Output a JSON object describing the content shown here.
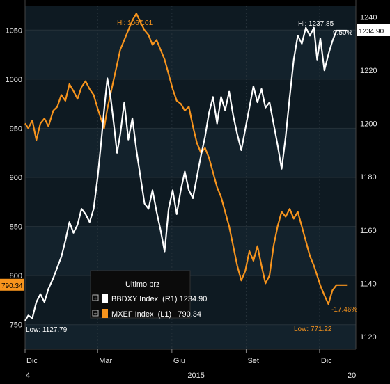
{
  "chart_data": {
    "type": "line",
    "title": "",
    "xlabel": "",
    "ylabel": "",
    "x_ticks": [
      {
        "label": "Dic",
        "date": "2014-12-01"
      },
      {
        "label": "Mar",
        "date": "2015-03-01"
      },
      {
        "label": "Giu",
        "date": "2015-06-01"
      },
      {
        "label": "Set",
        "date": "2015-09-01"
      },
      {
        "label": "Dic",
        "date": "2015-12-01"
      }
    ],
    "x_range": [
      "2014-12-01",
      "2016-01-15"
    ],
    "year_labels": [
      {
        "label": "4",
        "date": "2014-12-01"
      },
      {
        "label": "2015",
        "date": "2015-07-01"
      },
      {
        "label": "20",
        "date": "2016-01-10"
      }
    ],
    "left_axis": {
      "ticks": [
        750,
        800,
        850,
        900,
        950,
        1000,
        1050
      ],
      "range": [
        725,
        1075
      ]
    },
    "right_axis": {
      "ticks": [
        1120,
        1140,
        1160,
        1180,
        1200,
        1220,
        1240
      ],
      "range": [
        1115.3,
        1244.3
      ]
    },
    "legend": {
      "title": "Ultimo prz",
      "entries": [
        {
          "label": "BBDXY Index  (R1) 1234.90",
          "color": "#ffffff"
        },
        {
          "label": "MXEF Index  (L1)   790.34",
          "color": "#f7941d"
        }
      ]
    },
    "series": [
      {
        "name": "BBDXY Index",
        "axis": "right",
        "color": "#ffffff",
        "last_value": "1234.90",
        "high_label": "Hi: 1237.85",
        "low_label": "Low: 1127.79",
        "change_label": "9.50%",
        "points": [
          [
            "2014-12-01",
            1126
          ],
          [
            "2014-12-05",
            1128
          ],
          [
            "2014-12-10",
            1127
          ],
          [
            "2014-12-15",
            1133
          ],
          [
            "2014-12-20",
            1136
          ],
          [
            "2014-12-25",
            1133
          ],
          [
            "2014-12-30",
            1138
          ],
          [
            "2015-01-05",
            1142
          ],
          [
            "2015-01-10",
            1146
          ],
          [
            "2015-01-15",
            1150
          ],
          [
            "2015-01-20",
            1156
          ],
          [
            "2015-01-25",
            1163
          ],
          [
            "2015-01-30",
            1159
          ],
          [
            "2015-02-04",
            1162
          ],
          [
            "2015-02-09",
            1168
          ],
          [
            "2015-02-14",
            1166
          ],
          [
            "2015-02-19",
            1163
          ],
          [
            "2015-02-24",
            1168
          ],
          [
            "2015-03-01",
            1180
          ],
          [
            "2015-03-05",
            1192
          ],
          [
            "2015-03-09",
            1205
          ],
          [
            "2015-03-13",
            1217
          ],
          [
            "2015-03-17",
            1210
          ],
          [
            "2015-03-21",
            1200
          ],
          [
            "2015-03-25",
            1189
          ],
          [
            "2015-03-29",
            1196
          ],
          [
            "2015-04-03",
            1208
          ],
          [
            "2015-04-08",
            1194
          ],
          [
            "2015-04-13",
            1202
          ],
          [
            "2015-04-18",
            1190
          ],
          [
            "2015-04-23",
            1180
          ],
          [
            "2015-04-28",
            1170
          ],
          [
            "2015-05-03",
            1168
          ],
          [
            "2015-05-08",
            1175
          ],
          [
            "2015-05-13",
            1167
          ],
          [
            "2015-05-18",
            1160
          ],
          [
            "2015-05-23",
            1152
          ],
          [
            "2015-05-28",
            1168
          ],
          [
            "2015-06-02",
            1175
          ],
          [
            "2015-06-07",
            1166
          ],
          [
            "2015-06-12",
            1175
          ],
          [
            "2015-06-17",
            1182
          ],
          [
            "2015-06-22",
            1175
          ],
          [
            "2015-06-27",
            1172
          ],
          [
            "2015-07-02",
            1180
          ],
          [
            "2015-07-07",
            1188
          ],
          [
            "2015-07-12",
            1195
          ],
          [
            "2015-07-17",
            1204
          ],
          [
            "2015-07-22",
            1210
          ],
          [
            "2015-07-27",
            1200
          ],
          [
            "2015-08-01",
            1210
          ],
          [
            "2015-08-06",
            1205
          ],
          [
            "2015-08-11",
            1212
          ],
          [
            "2015-08-16",
            1203
          ],
          [
            "2015-08-21",
            1196
          ],
          [
            "2015-08-26",
            1190
          ],
          [
            "2015-08-31",
            1198
          ],
          [
            "2015-09-05",
            1206
          ],
          [
            "2015-09-10",
            1214
          ],
          [
            "2015-09-15",
            1208
          ],
          [
            "2015-09-20",
            1213
          ],
          [
            "2015-09-25",
            1206
          ],
          [
            "2015-09-30",
            1208
          ],
          [
            "2015-10-05",
            1200
          ],
          [
            "2015-10-10",
            1192
          ],
          [
            "2015-10-15",
            1183
          ],
          [
            "2015-10-20",
            1195
          ],
          [
            "2015-10-25",
            1210
          ],
          [
            "2015-10-30",
            1224
          ],
          [
            "2015-11-04",
            1233
          ],
          [
            "2015-11-09",
            1230
          ],
          [
            "2015-11-14",
            1236
          ],
          [
            "2015-11-19",
            1233
          ],
          [
            "2015-11-24",
            1236
          ],
          [
            "2015-11-28",
            1224
          ],
          [
            "2015-12-02",
            1232
          ],
          [
            "2015-12-07",
            1220
          ],
          [
            "2015-12-12",
            1226
          ],
          [
            "2015-12-17",
            1231
          ],
          [
            "2015-12-22",
            1234.9
          ],
          [
            "2016-01-04",
            1234.9
          ]
        ]
      },
      {
        "name": "MXEF Index",
        "axis": "left",
        "color": "#f7941d",
        "last_value": "790.34",
        "high_label": "Hi: 1067.01",
        "low_label": "Low: 771.22",
        "change_label": "-17.46%",
        "points": [
          [
            "2014-12-01",
            955
          ],
          [
            "2014-12-05",
            950
          ],
          [
            "2014-12-10",
            958
          ],
          [
            "2014-12-15",
            938
          ],
          [
            "2014-12-20",
            955
          ],
          [
            "2014-12-25",
            960
          ],
          [
            "2014-12-30",
            952
          ],
          [
            "2015-01-05",
            968
          ],
          [
            "2015-01-10",
            972
          ],
          [
            "2015-01-15",
            984
          ],
          [
            "2015-01-20",
            978
          ],
          [
            "2015-01-25",
            995
          ],
          [
            "2015-01-30",
            988
          ],
          [
            "2015-02-04",
            980
          ],
          [
            "2015-02-09",
            992
          ],
          [
            "2015-02-14",
            998
          ],
          [
            "2015-02-19",
            990
          ],
          [
            "2015-02-24",
            984
          ],
          [
            "2015-03-01",
            970
          ],
          [
            "2015-03-05",
            960
          ],
          [
            "2015-03-09",
            950
          ],
          [
            "2015-03-13",
            970
          ],
          [
            "2015-03-17",
            985
          ],
          [
            "2015-03-21",
            1000
          ],
          [
            "2015-03-25",
            1015
          ],
          [
            "2015-03-29",
            1030
          ],
          [
            "2015-04-03",
            1040
          ],
          [
            "2015-04-08",
            1050
          ],
          [
            "2015-04-13",
            1060
          ],
          [
            "2015-04-18",
            1067
          ],
          [
            "2015-04-23",
            1058
          ],
          [
            "2015-04-28",
            1050
          ],
          [
            "2015-05-03",
            1045
          ],
          [
            "2015-05-08",
            1035
          ],
          [
            "2015-05-13",
            1040
          ],
          [
            "2015-05-18",
            1030
          ],
          [
            "2015-05-23",
            1020
          ],
          [
            "2015-05-28",
            1005
          ],
          [
            "2015-06-02",
            990
          ],
          [
            "2015-06-07",
            978
          ],
          [
            "2015-06-12",
            975
          ],
          [
            "2015-06-17",
            968
          ],
          [
            "2015-06-22",
            972
          ],
          [
            "2015-06-27",
            952
          ],
          [
            "2015-07-02",
            935
          ],
          [
            "2015-07-07",
            925
          ],
          [
            "2015-07-12",
            930
          ],
          [
            "2015-07-17",
            920
          ],
          [
            "2015-07-22",
            905
          ],
          [
            "2015-07-27",
            890
          ],
          [
            "2015-08-01",
            880
          ],
          [
            "2015-08-06",
            865
          ],
          [
            "2015-08-11",
            850
          ],
          [
            "2015-08-16",
            830
          ],
          [
            "2015-08-21",
            810
          ],
          [
            "2015-08-26",
            795
          ],
          [
            "2015-08-31",
            805
          ],
          [
            "2015-09-05",
            825
          ],
          [
            "2015-09-10",
            815
          ],
          [
            "2015-09-15",
            830
          ],
          [
            "2015-09-20",
            810
          ],
          [
            "2015-09-25",
            792
          ],
          [
            "2015-09-30",
            800
          ],
          [
            "2015-10-05",
            830
          ],
          [
            "2015-10-10",
            850
          ],
          [
            "2015-10-15",
            865
          ],
          [
            "2015-10-20",
            860
          ],
          [
            "2015-10-25",
            868
          ],
          [
            "2015-10-30",
            858
          ],
          [
            "2015-11-04",
            865
          ],
          [
            "2015-11-09",
            850
          ],
          [
            "2015-11-14",
            835
          ],
          [
            "2015-11-19",
            820
          ],
          [
            "2015-11-24",
            810
          ],
          [
            "2015-11-28",
            800
          ],
          [
            "2015-12-02",
            790
          ],
          [
            "2015-12-07",
            780
          ],
          [
            "2015-12-12",
            771
          ],
          [
            "2015-12-17",
            785
          ],
          [
            "2015-12-22",
            790.34
          ],
          [
            "2016-01-04",
            790.34
          ]
        ]
      }
    ]
  }
}
